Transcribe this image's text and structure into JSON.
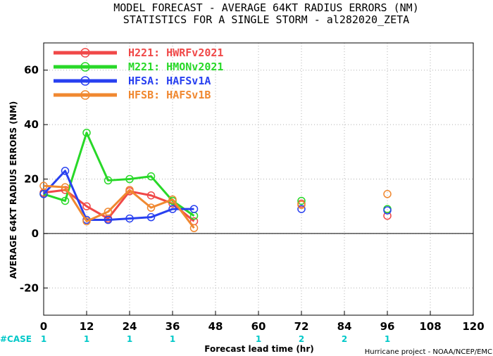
{
  "title_line1": "MODEL FORECAST - AVERAGE 64KT RADIUS ERRORS (NM)",
  "title_line2": "STATISTICS FOR A SINGLE STORM - al282020_ZETA",
  "credit": "Hurricane project - NOAA/NCEP/EMC",
  "case_label": "#CASE",
  "case_color": "#00c8c8",
  "chart_data": {
    "type": "line",
    "xlabel": "Forecast lead time (hr)",
    "ylabel": "AVERAGE 64KT RADIUS ERRORS (NM)",
    "xlim": [
      0,
      120
    ],
    "ylim": [
      -30,
      70
    ],
    "x_ticks": [
      0,
      12,
      24,
      36,
      48,
      60,
      72,
      84,
      96,
      108,
      120
    ],
    "y_ticks": [
      -20,
      0,
      20,
      40,
      60
    ],
    "grid": true,
    "legend_position": "top-left",
    "series": [
      {
        "name": "H221: HWRFv2021",
        "color": "#f04848",
        "points": [
          [
            0,
            15
          ],
          [
            6,
            16
          ],
          [
            12,
            10
          ],
          [
            18,
            5.5
          ],
          [
            24,
            15.5
          ],
          [
            30,
            14
          ],
          [
            36,
            11
          ],
          [
            42,
            4.5
          ],
          [
            72,
            11
          ],
          [
            96,
            6.5
          ]
        ]
      },
      {
        "name": "M221: HMONv2021",
        "color": "#28d828",
        "points": [
          [
            0,
            14.5
          ],
          [
            6,
            12
          ],
          [
            12,
            37
          ],
          [
            18,
            19.5
          ],
          [
            24,
            20
          ],
          [
            30,
            21
          ],
          [
            36,
            12
          ],
          [
            42,
            6.5
          ],
          [
            72,
            12
          ],
          [
            96,
            9
          ]
        ]
      },
      {
        "name": "HFSA: HAFSv1A",
        "color": "#2840f0",
        "points": [
          [
            0,
            14.5
          ],
          [
            6,
            23
          ],
          [
            12,
            5
          ],
          [
            18,
            5
          ],
          [
            24,
            5.5
          ],
          [
            30,
            6
          ],
          [
            36,
            9
          ],
          [
            42,
            9
          ],
          [
            72,
            9
          ],
          [
            96,
            8.5
          ]
        ]
      },
      {
        "name": "HFSB: HAFSv1B",
        "color": "#f08830",
        "points": [
          [
            0,
            17.5
          ],
          [
            6,
            17
          ],
          [
            12,
            4.5
          ],
          [
            18,
            8
          ],
          [
            24,
            16
          ],
          [
            30,
            9.5
          ],
          [
            36,
            12.5
          ],
          [
            42,
            2
          ],
          [
            72,
            10.5
          ],
          [
            96,
            14.5
          ]
        ]
      }
    ],
    "cases": [
      {
        "x": 0,
        "count": "1"
      },
      {
        "x": 12,
        "count": "1"
      },
      {
        "x": 24,
        "count": "1"
      },
      {
        "x": 36,
        "count": "1"
      },
      {
        "x": 60,
        "count": "1"
      },
      {
        "x": 72,
        "count": "2"
      },
      {
        "x": 84,
        "count": "2"
      },
      {
        "x": 96,
        "count": "1"
      }
    ]
  }
}
